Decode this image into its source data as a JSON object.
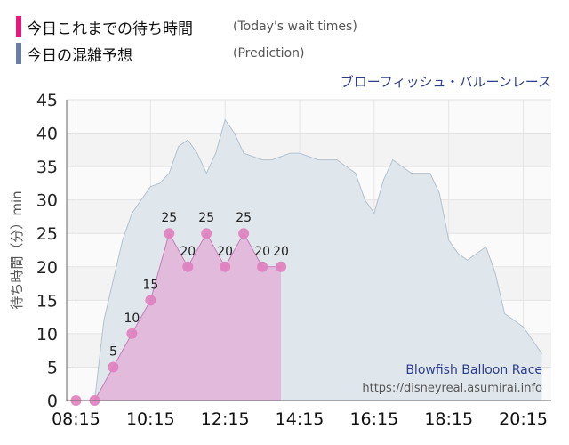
{
  "legend": {
    "today_label": "今日これまでの待ち時間",
    "today_sub": "(Today's wait times)",
    "prediction_label": "今日の混雑予想",
    "prediction_sub": "(Prediction)"
  },
  "colors": {
    "today_swatch": "#e8197d",
    "prediction_swatch": "#6b7fa6",
    "today_fill": "#e3b2d9",
    "today_line": "#c97bb6",
    "today_marker": "#e07fbe",
    "prediction_fill": "#dfe6ec",
    "prediction_line": "#b3c2cf",
    "band": "#f3f3f3"
  },
  "chart_data": {
    "type": "area",
    "title": "ブローフィッシュ・バルーンレース",
    "ylabel": "待ち時間（分）min",
    "ylim": [
      0,
      45
    ],
    "yticks": [
      0,
      5,
      10,
      15,
      20,
      25,
      30,
      35,
      40,
      45
    ],
    "xlim": [
      "08:00",
      "21:00"
    ],
    "xticks": [
      "08:15",
      "10:15",
      "12:15",
      "14:15",
      "16:15",
      "18:15",
      "20:15"
    ],
    "grid": true,
    "series": [
      {
        "name": "今日これまでの待ち時間",
        "x": [
          "08:15",
          "08:45",
          "09:15",
          "09:45",
          "10:15",
          "10:45",
          "11:15",
          "11:45",
          "12:15",
          "12:45",
          "13:15",
          "13:45"
        ],
        "y": [
          0,
          0,
          5,
          10,
          15,
          25,
          20,
          25,
          20,
          25,
          20,
          20
        ],
        "labels": [
          "",
          "",
          "5",
          "10",
          "15",
          "25",
          "20",
          "25",
          "20",
          "25",
          "20",
          "20"
        ]
      },
      {
        "name": "今日の混雑予想",
        "x": [
          "08:30",
          "08:45",
          "09:00",
          "09:15",
          "09:30",
          "09:45",
          "10:00",
          "10:15",
          "10:30",
          "10:45",
          "11:00",
          "11:15",
          "11:30",
          "11:45",
          "12:00",
          "12:15",
          "12:30",
          "12:45",
          "13:00",
          "13:15",
          "13:30",
          "13:45",
          "14:00",
          "14:15",
          "14:30",
          "14:45",
          "15:00",
          "15:15",
          "15:30",
          "15:45",
          "16:00",
          "16:15",
          "16:30",
          "16:45",
          "17:00",
          "17:15",
          "17:30",
          "17:45",
          "18:00",
          "18:15",
          "18:30",
          "18:45",
          "19:00",
          "19:15",
          "19:30",
          "19:45",
          "20:00",
          "20:15",
          "20:30",
          "20:45"
        ],
        "y": [
          0,
          0,
          12,
          18,
          24,
          28,
          30,
          32,
          32.5,
          34,
          38,
          39,
          37,
          34,
          37,
          42,
          40,
          37,
          36.5,
          36,
          36,
          36.5,
          37,
          37,
          36.5,
          36,
          36,
          36,
          35,
          34,
          30,
          28,
          33,
          36,
          35,
          34,
          34,
          34,
          31,
          24,
          22,
          21,
          22,
          23,
          19,
          13,
          12,
          11,
          9,
          7
        ]
      }
    ],
    "annotations": [
      "Blowfish Balloon Race",
      "https://disneyreal.asumirai.info"
    ]
  }
}
